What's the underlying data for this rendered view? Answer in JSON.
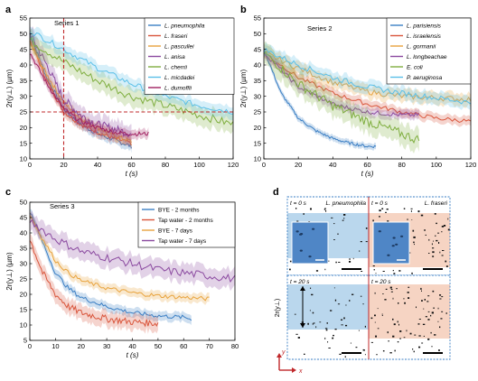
{
  "chart_data": [
    {
      "panel": "a",
      "type": "line",
      "title": "Series 1",
      "xlabel": "t (s)",
      "ylabel": "2r(y⊥) (µm)",
      "xlim": [
        0,
        120
      ],
      "ylim": [
        10,
        55
      ],
      "xticks": [
        0,
        20,
        40,
        60,
        80,
        100,
        120
      ],
      "yticks": [
        10,
        15,
        20,
        25,
        30,
        35,
        40,
        45,
        50,
        55
      ],
      "grid": false,
      "legend_position": "top-right",
      "italic_legend": true,
      "reference_lines": {
        "x": 20,
        "y": 25,
        "color": "#c0282b"
      },
      "series": [
        {
          "name": "L. pneumophila",
          "color": "#3b7fc4",
          "band": 1.5,
          "x": [
            0,
            10,
            20,
            30,
            40,
            50,
            60
          ],
          "y": [
            50,
            36,
            26,
            21,
            18,
            16,
            14
          ]
        },
        {
          "name": "L. fraseri",
          "color": "#d9553b",
          "band": 1.5,
          "x": [
            0,
            10,
            20,
            30,
            40,
            50,
            60
          ],
          "y": [
            48,
            35,
            25,
            21,
            18.5,
            16.5,
            15
          ]
        },
        {
          "name": "L. pascullei",
          "color": "#e8a33d",
          "band": 1.5,
          "x": [
            0,
            10,
            20,
            30,
            40,
            50,
            60
          ],
          "y": [
            47,
            37,
            28,
            23,
            20,
            17.5,
            15.5
          ]
        },
        {
          "name": "L. anisa",
          "color": "#8b4aa0",
          "band": 3,
          "x": [
            0,
            10,
            20,
            30,
            40,
            50,
            60
          ],
          "y": [
            50,
            40,
            29,
            24,
            21,
            19.5,
            18
          ]
        },
        {
          "name": "L. cherrii",
          "color": "#7fae3f",
          "band": 3,
          "x": [
            0,
            20,
            40,
            60,
            80,
            100,
            120
          ],
          "y": [
            48,
            41,
            35,
            30,
            27,
            24,
            21
          ]
        },
        {
          "name": "L. micdadei",
          "color": "#5bc0e8",
          "band": 2,
          "x": [
            0,
            20,
            40,
            60,
            80,
            100,
            120
          ],
          "y": [
            51,
            45,
            39,
            34,
            30,
            27,
            25
          ]
        },
        {
          "name": "L. dumoffii",
          "color": "#a02060",
          "band": 1.5,
          "x": [
            0,
            10,
            20,
            30,
            40,
            50,
            60,
            70
          ],
          "y": [
            44,
            34,
            26,
            22,
            20,
            18.5,
            18,
            18
          ]
        }
      ]
    },
    {
      "panel": "b",
      "type": "line",
      "title": "Series 2",
      "xlabel": "t (s)",
      "ylabel": "2r(y⊥) (µm)",
      "xlim": [
        0,
        120
      ],
      "ylim": [
        10,
        55
      ],
      "xticks": [
        0,
        20,
        40,
        60,
        80,
        100,
        120
      ],
      "yticks": [
        10,
        15,
        20,
        25,
        30,
        35,
        40,
        45,
        50,
        55
      ],
      "grid": false,
      "legend_position": "top-right",
      "italic_legend": true,
      "series": [
        {
          "name": "L. parisiensis",
          "color": "#3b7fc4",
          "band": 1,
          "x": [
            0,
            10,
            20,
            30,
            40,
            50,
            60,
            65
          ],
          "y": [
            45,
            31,
            23,
            19,
            16.5,
            15,
            14,
            14
          ]
        },
        {
          "name": "L. israelensis",
          "color": "#d9553b",
          "band": 1.5,
          "x": [
            0,
            20,
            40,
            60,
            80,
            100,
            120
          ],
          "y": [
            44,
            36,
            31,
            27.5,
            25,
            23,
            22
          ]
        },
        {
          "name": "L. gormanii",
          "color": "#e8a33d",
          "band": 2,
          "x": [
            0,
            20,
            40,
            60,
            80,
            100,
            120
          ],
          "y": [
            44,
            39,
            34.5,
            31.5,
            30,
            29.5,
            29
          ]
        },
        {
          "name": "L. longbeachae",
          "color": "#8b4aa0",
          "band": 1.5,
          "x": [
            0,
            20,
            40,
            60,
            80,
            90
          ],
          "y": [
            44,
            33,
            27.5,
            25,
            24,
            24
          ]
        },
        {
          "name": "E. coli",
          "color": "#7fae3f",
          "band": 3.5,
          "x": [
            0,
            20,
            40,
            60,
            80,
            90
          ],
          "y": [
            44,
            34,
            27,
            22,
            18,
            16
          ]
        },
        {
          "name": "P. aeruginosa",
          "color": "#5bc0e8",
          "band": 2,
          "x": [
            0,
            20,
            40,
            60,
            80,
            100,
            120
          ],
          "y": [
            45,
            40,
            36,
            33,
            31,
            29.5,
            28
          ]
        }
      ]
    },
    {
      "panel": "c",
      "type": "line",
      "title": "Series 3",
      "xlabel": "t (s)",
      "ylabel": "2r(y⊥) (µm)",
      "xlim": [
        0,
        80
      ],
      "ylim": [
        5,
        50
      ],
      "xticks": [
        0,
        10,
        20,
        30,
        40,
        50,
        60,
        70,
        80
      ],
      "yticks": [
        5,
        10,
        15,
        20,
        25,
        30,
        35,
        40,
        45,
        50
      ],
      "grid": false,
      "legend_position": "top-right",
      "italic_legend": false,
      "series": [
        {
          "name": "BYE - 2 months",
          "color": "#3b7fc4",
          "band": 1.5,
          "x": [
            0,
            5,
            10,
            15,
            20,
            30,
            40,
            50,
            60,
            63
          ],
          "y": [
            47,
            37,
            27,
            22,
            19,
            16,
            14,
            13,
            12.5,
            12
          ]
        },
        {
          "name": "Tap water - 2 months",
          "color": "#d9553b",
          "band": 2.5,
          "x": [
            0,
            5,
            10,
            15,
            20,
            30,
            40,
            50
          ],
          "y": [
            38,
            27,
            20,
            16,
            14,
            12,
            11,
            10.5
          ]
        },
        {
          "name": "BYE - 7 days",
          "color": "#e8a33d",
          "band": 1.5,
          "x": [
            0,
            5,
            10,
            15,
            20,
            30,
            40,
            50,
            60,
            70
          ],
          "y": [
            46,
            38,
            31,
            27,
            24.5,
            22,
            20.5,
            19.5,
            19,
            18.5
          ]
        },
        {
          "name": "Tap water - 7 days",
          "color": "#8b4aa0",
          "band": 3,
          "x": [
            0,
            10,
            20,
            30,
            40,
            50,
            60,
            70,
            80
          ],
          "y": [
            44,
            38,
            34,
            32,
            30,
            28,
            27,
            26,
            25
          ]
        }
      ]
    }
  ],
  "panel_d": {
    "panel_label": "d",
    "cells": [
      {
        "time": "t = 0 s",
        "species": "L. pneumophila",
        "band_color": "#a9cde9",
        "inset": true
      },
      {
        "time": "t = 0 s",
        "species": "L. fraseri",
        "band_color": "#f4c9b4",
        "inset": true
      },
      {
        "time": "t = 20 s",
        "species": "",
        "band_color": "#a9cde9",
        "inset": false
      },
      {
        "time": "t = 20 s",
        "species": "",
        "band_color": "#f4c9b4",
        "inset": false
      }
    ],
    "axis_label_y": "y",
    "axis_label_x": "x",
    "dim_label": "2r(y⊥)"
  }
}
